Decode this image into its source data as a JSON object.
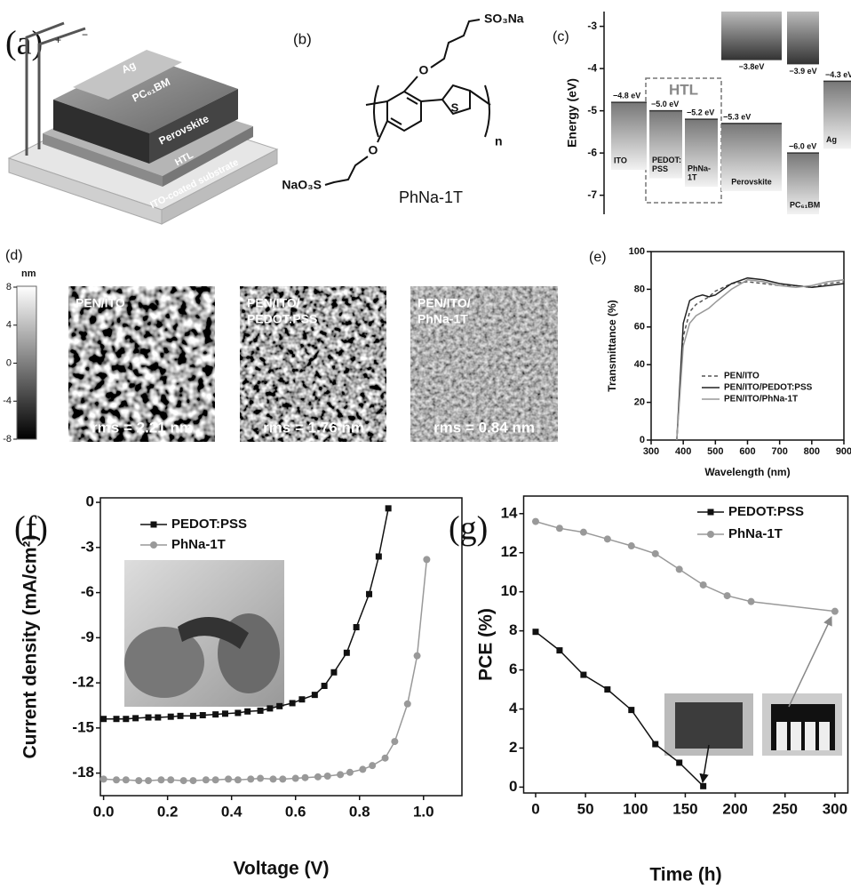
{
  "panels": {
    "a": {
      "label": "(a)",
      "layers": [
        "Ag",
        "PC₆₁BM",
        "Perovskite",
        "HTL",
        "ITO-coated substrate"
      ],
      "polarity": [
        "+",
        "−"
      ]
    },
    "b": {
      "label": "(b)",
      "compound": "PhNa-1T",
      "groups": [
        "SO₃Na",
        "NaO₃S",
        "O",
        "O",
        "S",
        "n"
      ]
    },
    "d": {
      "label": "(d)",
      "unit": "nm",
      "colorbar_ticks": [
        8,
        4,
        0,
        -4,
        -8
      ],
      "images": [
        {
          "title_lines": [
            "PEN/ITO"
          ],
          "rms": "rms = 2.21 nm"
        },
        {
          "title_lines": [
            "PEN/ITO/",
            "PEDOT:PSS"
          ],
          "rms": "rms = 1.76 nm"
        },
        {
          "title_lines": [
            "PEN/ITO/",
            "PhNa-1T"
          ],
          "rms": "rms = 0.84 nm"
        }
      ]
    }
  },
  "chart_data": [
    {
      "type": "energy",
      "panel_label": "(c)",
      "ylabel": "Energy (eV)",
      "ylim": [
        -7.45,
        -2.65
      ],
      "yticks": [
        -3,
        -4,
        -5,
        -6,
        -7
      ],
      "group_label": "HTL",
      "materials": [
        {
          "name_lines": [
            "ITO"
          ],
          "values": [
            -4.8
          ],
          "value_labels": [
            "−4.8 eV"
          ]
        },
        {
          "name_lines": [
            "PEDOT:",
            "PSS"
          ],
          "values": [
            -5.0
          ],
          "value_labels": [
            "−5.0 eV"
          ]
        },
        {
          "name_lines": [
            "PhNa-",
            "1T"
          ],
          "values": [
            -5.2
          ],
          "value_labels": [
            "−5.2 eV"
          ]
        },
        {
          "name_lines": [
            "Perovskite"
          ],
          "values": [
            -3.8,
            -5.3
          ],
          "value_labels": [
            "−3.8eV",
            "−5.3 eV"
          ]
        },
        {
          "name_lines": [
            "PC₆₁BM"
          ],
          "values": [
            -3.9,
            -6.0
          ],
          "value_labels": [
            "−3.9 eV",
            "−6.0 eV"
          ]
        },
        {
          "name_lines": [
            "Ag"
          ],
          "values": [
            -4.3
          ],
          "value_labels": [
            "−4.3 eV"
          ]
        }
      ]
    },
    {
      "type": "line",
      "panel_label": "(e)",
      "xlabel": "Wavelength (nm)",
      "ylabel": "Transmittance (%)",
      "x": [
        380,
        400,
        420,
        440,
        460,
        480,
        500,
        550,
        600,
        650,
        700,
        750,
        800,
        850,
        900
      ],
      "xlim": [
        300,
        900
      ],
      "xticks": [
        300,
        400,
        500,
        600,
        700,
        800,
        900
      ],
      "ylim": [
        0,
        100
      ],
      "yticks": [
        0,
        20,
        40,
        60,
        80,
        100
      ],
      "series": [
        {
          "name": "PEN/ITO",
          "color": "#555555",
          "linestyle": "dashed",
          "values": [
            0,
            55,
            68,
            72,
            74,
            76,
            79,
            83,
            84,
            83,
            82,
            82,
            81,
            83,
            84
          ]
        },
        {
          "name": "PEN/ITO/PEDOT:PSS",
          "color": "#222222",
          "linestyle": "solid",
          "values": [
            0,
            62,
            74,
            76,
            77,
            76,
            77,
            83,
            86,
            85,
            83,
            82,
            81,
            82,
            83
          ]
        },
        {
          "name": "PEN/ITO/PhNa-1T",
          "color": "#999999",
          "linestyle": "solid",
          "values": [
            0,
            50,
            62,
            66,
            68,
            70,
            73,
            80,
            85,
            84,
            82,
            81,
            82,
            84,
            85
          ]
        }
      ]
    },
    {
      "type": "line",
      "panel_label": "(f)",
      "xlabel": "Voltage (V)",
      "ylabel": "Current density (mA/cm²)",
      "xlim": [
        -0.01,
        1.12
      ],
      "xticks": [
        {
          "value": 0,
          "label": "0.0"
        },
        0.2,
        0.4,
        0.6,
        0.8,
        {
          "value": 1,
          "label": "1.0"
        }
      ],
      "ylim": [
        -19.5,
        0.3
      ],
      "yticks": [
        0,
        -3,
        -6,
        -9,
        -12,
        -15,
        -18
      ],
      "series": [
        {
          "name": "PEDOT:PSS",
          "color": "#111111",
          "marker": "square",
          "x": [
            0,
            0.04,
            0.07,
            0.1,
            0.14,
            0.17,
            0.21,
            0.24,
            0.28,
            0.31,
            0.35,
            0.38,
            0.42,
            0.45,
            0.49,
            0.52,
            0.55,
            0.59,
            0.62,
            0.66,
            0.69,
            0.72,
            0.76,
            0.79,
            0.83,
            0.86,
            0.89
          ],
          "values": [
            -14.4,
            -14.4,
            -14.4,
            -14.35,
            -14.3,
            -14.3,
            -14.25,
            -14.2,
            -14.2,
            -14.15,
            -14.1,
            -14.05,
            -14.0,
            -13.9,
            -13.85,
            -13.7,
            -13.55,
            -13.35,
            -13.1,
            -12.8,
            -12.2,
            -11.3,
            -10.0,
            -8.3,
            -6.1,
            -3.6,
            -0.4
          ]
        },
        {
          "name": "PhNa-1T",
          "color": "#999999",
          "marker": "circle",
          "x": [
            0,
            0.04,
            0.07,
            0.11,
            0.14,
            0.18,
            0.21,
            0.25,
            0.28,
            0.32,
            0.35,
            0.39,
            0.42,
            0.46,
            0.49,
            0.53,
            0.56,
            0.6,
            0.63,
            0.67,
            0.7,
            0.74,
            0.77,
            0.81,
            0.84,
            0.88,
            0.91,
            0.95,
            0.98,
            1.01
          ],
          "values": [
            -18.4,
            -18.45,
            -18.45,
            -18.5,
            -18.5,
            -18.45,
            -18.45,
            -18.5,
            -18.5,
            -18.45,
            -18.45,
            -18.4,
            -18.45,
            -18.4,
            -18.35,
            -18.4,
            -18.4,
            -18.35,
            -18.3,
            -18.25,
            -18.2,
            -18.1,
            -17.95,
            -17.75,
            -17.5,
            -17.0,
            -15.9,
            -13.4,
            -10.2,
            -3.8
          ]
        }
      ]
    },
    {
      "type": "line",
      "panel_label": "(g)",
      "xlabel": "Time (h)",
      "ylabel": "PCE (%)",
      "xlim": [
        -12,
        313
      ],
      "xticks": [
        0,
        50,
        100,
        150,
        200,
        250,
        300
      ],
      "ylim": [
        -0.3,
        14.9
      ],
      "yticks": [
        0,
        2,
        4,
        6,
        8,
        10,
        12,
        14
      ],
      "series": [
        {
          "name": "PEDOT:PSS",
          "color": "#111111",
          "marker": "square",
          "x": [
            0,
            24,
            48,
            72,
            96,
            120,
            144,
            168
          ],
          "values": [
            7.95,
            7.0,
            5.75,
            5.0,
            3.95,
            2.2,
            1.25,
            0.05
          ]
        },
        {
          "name": "PhNa-1T",
          "color": "#999999",
          "marker": "circle",
          "x": [
            0,
            24,
            48,
            72,
            96,
            120,
            144,
            168,
            192,
            216,
            300
          ],
          "values": [
            13.6,
            13.25,
            13.05,
            12.7,
            12.35,
            11.95,
            11.15,
            10.35,
            9.8,
            9.5,
            9.0
          ]
        }
      ]
    }
  ]
}
